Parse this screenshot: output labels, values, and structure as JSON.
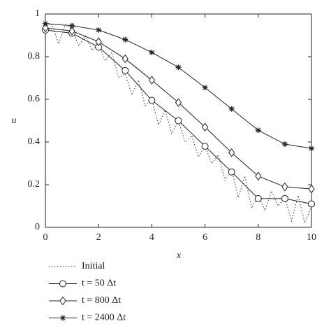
{
  "chart_data": {
    "type": "line",
    "xlabel": "x",
    "ylabel": "u",
    "xlim": [
      0,
      10
    ],
    "ylim": [
      0,
      1
    ],
    "xticks": [
      0,
      2,
      4,
      6,
      8,
      10
    ],
    "yticks": [
      0,
      0.2,
      0.4,
      0.6,
      0.8,
      1
    ],
    "legend": "bottom-left",
    "series": [
      {
        "name": "Initial",
        "color": "#333333",
        "dash": "dotted",
        "marker": "none",
        "x": [
          0,
          0.25,
          0.5,
          0.75,
          1,
          1.25,
          1.5,
          1.75,
          2,
          2.25,
          2.5,
          2.75,
          3,
          3.25,
          3.5,
          3.75,
          4,
          4.25,
          4.5,
          4.75,
          5,
          5.25,
          5.5,
          5.75,
          6,
          6.25,
          6.5,
          6.75,
          7,
          7.25,
          7.5,
          7.75,
          8,
          8.25,
          8.5,
          8.75,
          9,
          9.25,
          9.5,
          9.75,
          10
        ],
        "values": [
          0.96,
          0.95,
          0.86,
          0.95,
          0.93,
          0.85,
          0.9,
          0.83,
          0.86,
          0.78,
          0.82,
          0.7,
          0.72,
          0.62,
          0.69,
          0.57,
          0.6,
          0.48,
          0.55,
          0.44,
          0.5,
          0.4,
          0.43,
          0.33,
          0.38,
          0.3,
          0.34,
          0.22,
          0.27,
          0.14,
          0.24,
          0.09,
          0.15,
          0.08,
          0.17,
          0.1,
          0.14,
          0.03,
          0.15,
          0.02,
          0.1
        ]
      },
      {
        "name": "t = 50 Δt",
        "color": "#222222",
        "dash": "solid",
        "marker": "circle",
        "x": [
          0,
          1,
          2,
          3,
          4,
          5,
          6,
          7,
          8,
          9,
          10
        ],
        "values": [
          0.925,
          0.91,
          0.845,
          0.735,
          0.595,
          0.5,
          0.38,
          0.26,
          0.135,
          0.135,
          0.11
        ]
      },
      {
        "name": "t = 800 Δt",
        "color": "#222222",
        "dash": "solid",
        "marker": "diamond",
        "x": [
          0,
          1,
          2,
          3,
          4,
          5,
          6,
          7,
          8,
          9,
          10
        ],
        "values": [
          0.935,
          0.92,
          0.87,
          0.79,
          0.69,
          0.585,
          0.47,
          0.35,
          0.24,
          0.19,
          0.18
        ]
      },
      {
        "name": "t = 2400 Δt",
        "color": "#222222",
        "dash": "solid",
        "marker": "star",
        "x": [
          0,
          1,
          2,
          3,
          4,
          5,
          6,
          7,
          8,
          9,
          10
        ],
        "values": [
          0.955,
          0.945,
          0.925,
          0.88,
          0.82,
          0.75,
          0.655,
          0.555,
          0.455,
          0.39,
          0.37
        ]
      }
    ]
  }
}
